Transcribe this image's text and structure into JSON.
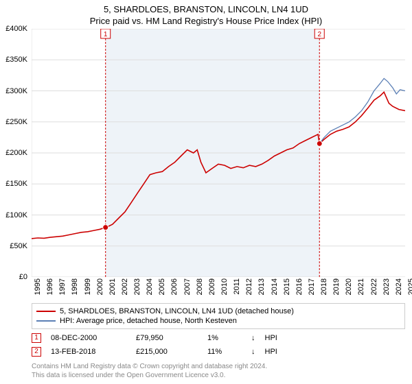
{
  "title": "5, SHARDLOES, BRANSTON, LINCOLN, LN4 1UD",
  "subtitle": "Price paid vs. HM Land Registry's House Price Index (HPI)",
  "chart": {
    "type": "line",
    "background_color": "#ffffff",
    "plot_band_color": "#eef3f8",
    "grid_color": "#dddddd",
    "axis_color": "#dddddd",
    "label_fontsize": 11,
    "y": {
      "min": 0,
      "max": 400000,
      "step": 50000,
      "ticks": [
        "£0",
        "£50K",
        "£100K",
        "£150K",
        "£200K",
        "£250K",
        "£300K",
        "£350K",
        "£400K"
      ]
    },
    "x": {
      "min": 1995,
      "max": 2025,
      "step": 1,
      "ticks": [
        "1995",
        "1996",
        "1997",
        "1998",
        "1999",
        "2000",
        "2001",
        "2002",
        "2003",
        "2004",
        "2005",
        "2006",
        "2007",
        "2008",
        "2009",
        "2010",
        "2011",
        "2012",
        "2013",
        "2014",
        "2015",
        "2016",
        "2017",
        "2018",
        "2019",
        "2020",
        "2021",
        "2022",
        "2023",
        "2024",
        "2025"
      ]
    },
    "series": [
      {
        "name": "5, SHARDLOES, BRANSTON, LINCOLN, LN4 1UD (detached house)",
        "color": "#cc0000",
        "line_width": 1.6,
        "data": [
          [
            1995,
            62000
          ],
          [
            1995.5,
            63000
          ],
          [
            1996,
            62500
          ],
          [
            1996.5,
            64000
          ],
          [
            1997,
            65000
          ],
          [
            1997.5,
            66000
          ],
          [
            1998,
            68000
          ],
          [
            1998.5,
            70000
          ],
          [
            1999,
            72000
          ],
          [
            1999.5,
            73000
          ],
          [
            2000,
            75000
          ],
          [
            2000.5,
            77000
          ],
          [
            2000.94,
            79950
          ],
          [
            2001,
            80000
          ],
          [
            2001.5,
            85000
          ],
          [
            2002,
            95000
          ],
          [
            2002.5,
            105000
          ],
          [
            2003,
            120000
          ],
          [
            2003.5,
            135000
          ],
          [
            2004,
            150000
          ],
          [
            2004.5,
            165000
          ],
          [
            2005,
            168000
          ],
          [
            2005.5,
            170000
          ],
          [
            2006,
            178000
          ],
          [
            2006.5,
            185000
          ],
          [
            2007,
            195000
          ],
          [
            2007.5,
            205000
          ],
          [
            2008,
            200000
          ],
          [
            2008.3,
            205000
          ],
          [
            2008.6,
            185000
          ],
          [
            2009,
            168000
          ],
          [
            2009.5,
            175000
          ],
          [
            2010,
            182000
          ],
          [
            2010.5,
            180000
          ],
          [
            2011,
            175000
          ],
          [
            2011.5,
            178000
          ],
          [
            2012,
            176000
          ],
          [
            2012.5,
            180000
          ],
          [
            2013,
            178000
          ],
          [
            2013.5,
            182000
          ],
          [
            2014,
            188000
          ],
          [
            2014.5,
            195000
          ],
          [
            2015,
            200000
          ],
          [
            2015.5,
            205000
          ],
          [
            2016,
            208000
          ],
          [
            2016.5,
            215000
          ],
          [
            2017,
            220000
          ],
          [
            2017.5,
            225000
          ],
          [
            2018,
            230000
          ],
          [
            2018.12,
            215000
          ],
          [
            2018.5,
            222000
          ],
          [
            2019,
            230000
          ],
          [
            2019.5,
            235000
          ],
          [
            2020,
            238000
          ],
          [
            2020.5,
            242000
          ],
          [
            2021,
            250000
          ],
          [
            2021.5,
            260000
          ],
          [
            2022,
            272000
          ],
          [
            2022.5,
            285000
          ],
          [
            2023,
            292000
          ],
          [
            2023.3,
            298000
          ],
          [
            2023.7,
            280000
          ],
          [
            2024,
            275000
          ],
          [
            2024.5,
            270000
          ],
          [
            2025,
            268000
          ]
        ]
      },
      {
        "name": "HPI: Average price, detached house, North Kesteven",
        "color": "#5b7fb5",
        "line_width": 1.3,
        "data": [
          [
            2018.12,
            215000
          ],
          [
            2018.5,
            225000
          ],
          [
            2019,
            235000
          ],
          [
            2019.5,
            240000
          ],
          [
            2020,
            245000
          ],
          [
            2020.5,
            250000
          ],
          [
            2021,
            258000
          ],
          [
            2021.5,
            268000
          ],
          [
            2022,
            282000
          ],
          [
            2022.5,
            300000
          ],
          [
            2023,
            312000
          ],
          [
            2023.3,
            320000
          ],
          [
            2023.6,
            315000
          ],
          [
            2024,
            305000
          ],
          [
            2024.3,
            295000
          ],
          [
            2024.6,
            302000
          ],
          [
            2025,
            300000
          ]
        ]
      }
    ],
    "markers": [
      {
        "n": "1",
        "year": 2000.94,
        "value": 79950,
        "date": "08-DEC-2000",
        "price": "£79,950",
        "pct": "1%",
        "direction": "↓",
        "vs": "HPI",
        "line_color": "#cc0000",
        "badge_border": "#cc0000",
        "dot_fill": "#cc0000"
      },
      {
        "n": "2",
        "year": 2018.12,
        "value": 215000,
        "date": "13-FEB-2018",
        "price": "£215,000",
        "pct": "11%",
        "direction": "↓",
        "vs": "HPI",
        "line_color": "#cc0000",
        "badge_border": "#cc0000",
        "dot_fill": "#cc0000"
      }
    ],
    "plot_band": {
      "from": 2000.94,
      "to": 2018.12
    }
  },
  "footer": {
    "line1": "Contains HM Land Registry data © Crown copyright and database right 2024.",
    "line2": "This data is licensed under the Open Government Licence v3.0."
  }
}
